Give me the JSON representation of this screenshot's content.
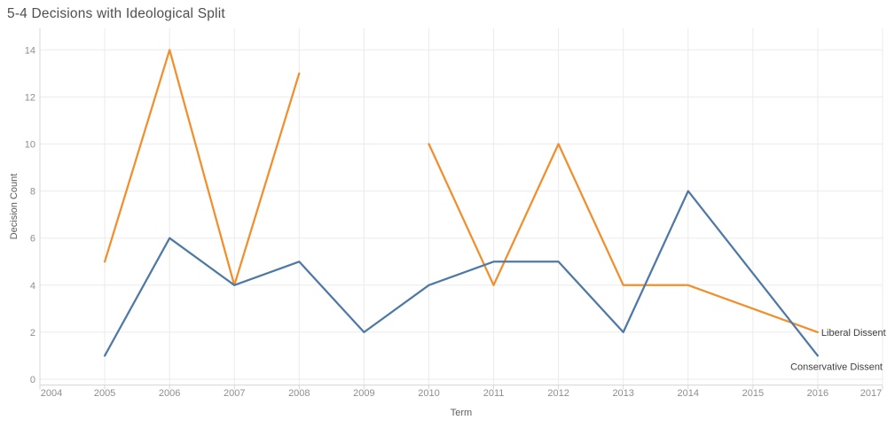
{
  "chart_data": {
    "type": "line",
    "title": "5-4 Decisions with Ideological Split",
    "xlabel": "Term",
    "ylabel": "Decision Count",
    "xlim": [
      2004,
      2017
    ],
    "ylim": [
      0,
      14.9
    ],
    "x_ticks": [
      2004,
      2005,
      2006,
      2007,
      2008,
      2009,
      2010,
      2011,
      2012,
      2013,
      2014,
      2015,
      2016,
      2017
    ],
    "y_ticks": [
      0,
      2,
      4,
      6,
      8,
      10,
      12,
      14
    ],
    "grid": true,
    "legend_position": "line-end-labels",
    "series": [
      {
        "name": "Liberal Dissent",
        "color": "#f28e2b",
        "end_label": "Liberal Dissent",
        "segments": [
          [
            [
              2005,
              5
            ],
            [
              2006,
              14
            ],
            [
              2007,
              4
            ],
            [
              2008,
              13
            ]
          ],
          [
            [
              2010,
              10
            ],
            [
              2011,
              4
            ],
            [
              2012,
              10
            ],
            [
              2013,
              4
            ],
            [
              2014,
              4
            ],
            [
              2016,
              2
            ]
          ]
        ]
      },
      {
        "name": "Conservative Dissent",
        "color": "#4e79a7",
        "end_label": "Conservative Dissent",
        "segments": [
          [
            [
              2005,
              1
            ],
            [
              2006,
              6
            ],
            [
              2007,
              4
            ],
            [
              2008,
              5
            ],
            [
              2009,
              2
            ],
            [
              2010,
              4
            ],
            [
              2011,
              5
            ],
            [
              2012,
              5
            ],
            [
              2013,
              2
            ],
            [
              2014,
              8
            ],
            [
              2016,
              1
            ]
          ]
        ]
      }
    ]
  },
  "colors": {
    "background": "#ffffff",
    "gridline": "#ebebeb",
    "axis_rule": "#d7d7d7",
    "tick_label": "#8e8e8e",
    "axis_title": "#5c5c5c",
    "chart_title": "#4f4f4f",
    "end_label": "#3f3f3f",
    "liberal_dissent": "#f28e2b",
    "conservative_dissent": "#4e79a7"
  }
}
